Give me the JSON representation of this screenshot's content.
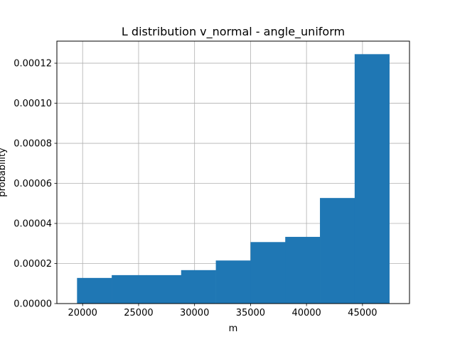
{
  "chart_data": {
    "type": "histogram",
    "title": "L distribution v_normal - angle_uniform",
    "xlabel": "m",
    "ylabel": "probability",
    "xlim": [
      17700,
      49200
    ],
    "ylim": [
      0,
      0.000131
    ],
    "grid": true,
    "bar_color": "#1f77b4",
    "bins": [
      {
        "x0": 19500,
        "x1": 22600,
        "value": 1.28e-05
      },
      {
        "x0": 22600,
        "x1": 25700,
        "value": 1.42e-05
      },
      {
        "x0": 25700,
        "x1": 28800,
        "value": 1.42e-05
      },
      {
        "x0": 28800,
        "x1": 31900,
        "value": 1.67e-05
      },
      {
        "x0": 31900,
        "x1": 35000,
        "value": 2.15e-05
      },
      {
        "x0": 35000,
        "x1": 38100,
        "value": 3.07e-05
      },
      {
        "x0": 38100,
        "x1": 41200,
        "value": 3.33e-05
      },
      {
        "x0": 41200,
        "x1": 44300,
        "value": 5.27e-05
      },
      {
        "x0": 44300,
        "x1": 47400,
        "value": 0.0001245
      }
    ],
    "x_ticks": [
      {
        "value": 20000,
        "label": "20000"
      },
      {
        "value": 25000,
        "label": "25000"
      },
      {
        "value": 30000,
        "label": "30000"
      },
      {
        "value": 35000,
        "label": "35000"
      },
      {
        "value": 40000,
        "label": "40000"
      },
      {
        "value": 45000,
        "label": "45000"
      }
    ],
    "y_ticks": [
      {
        "value": 0,
        "label": "0.00000"
      },
      {
        "value": 2e-05,
        "label": "0.00002"
      },
      {
        "value": 4e-05,
        "label": "0.00004"
      },
      {
        "value": 6e-05,
        "label": "0.00006"
      },
      {
        "value": 8e-05,
        "label": "0.00008"
      },
      {
        "value": 0.0001,
        "label": "0.00010"
      },
      {
        "value": 0.00012,
        "label": "0.00012"
      }
    ]
  }
}
